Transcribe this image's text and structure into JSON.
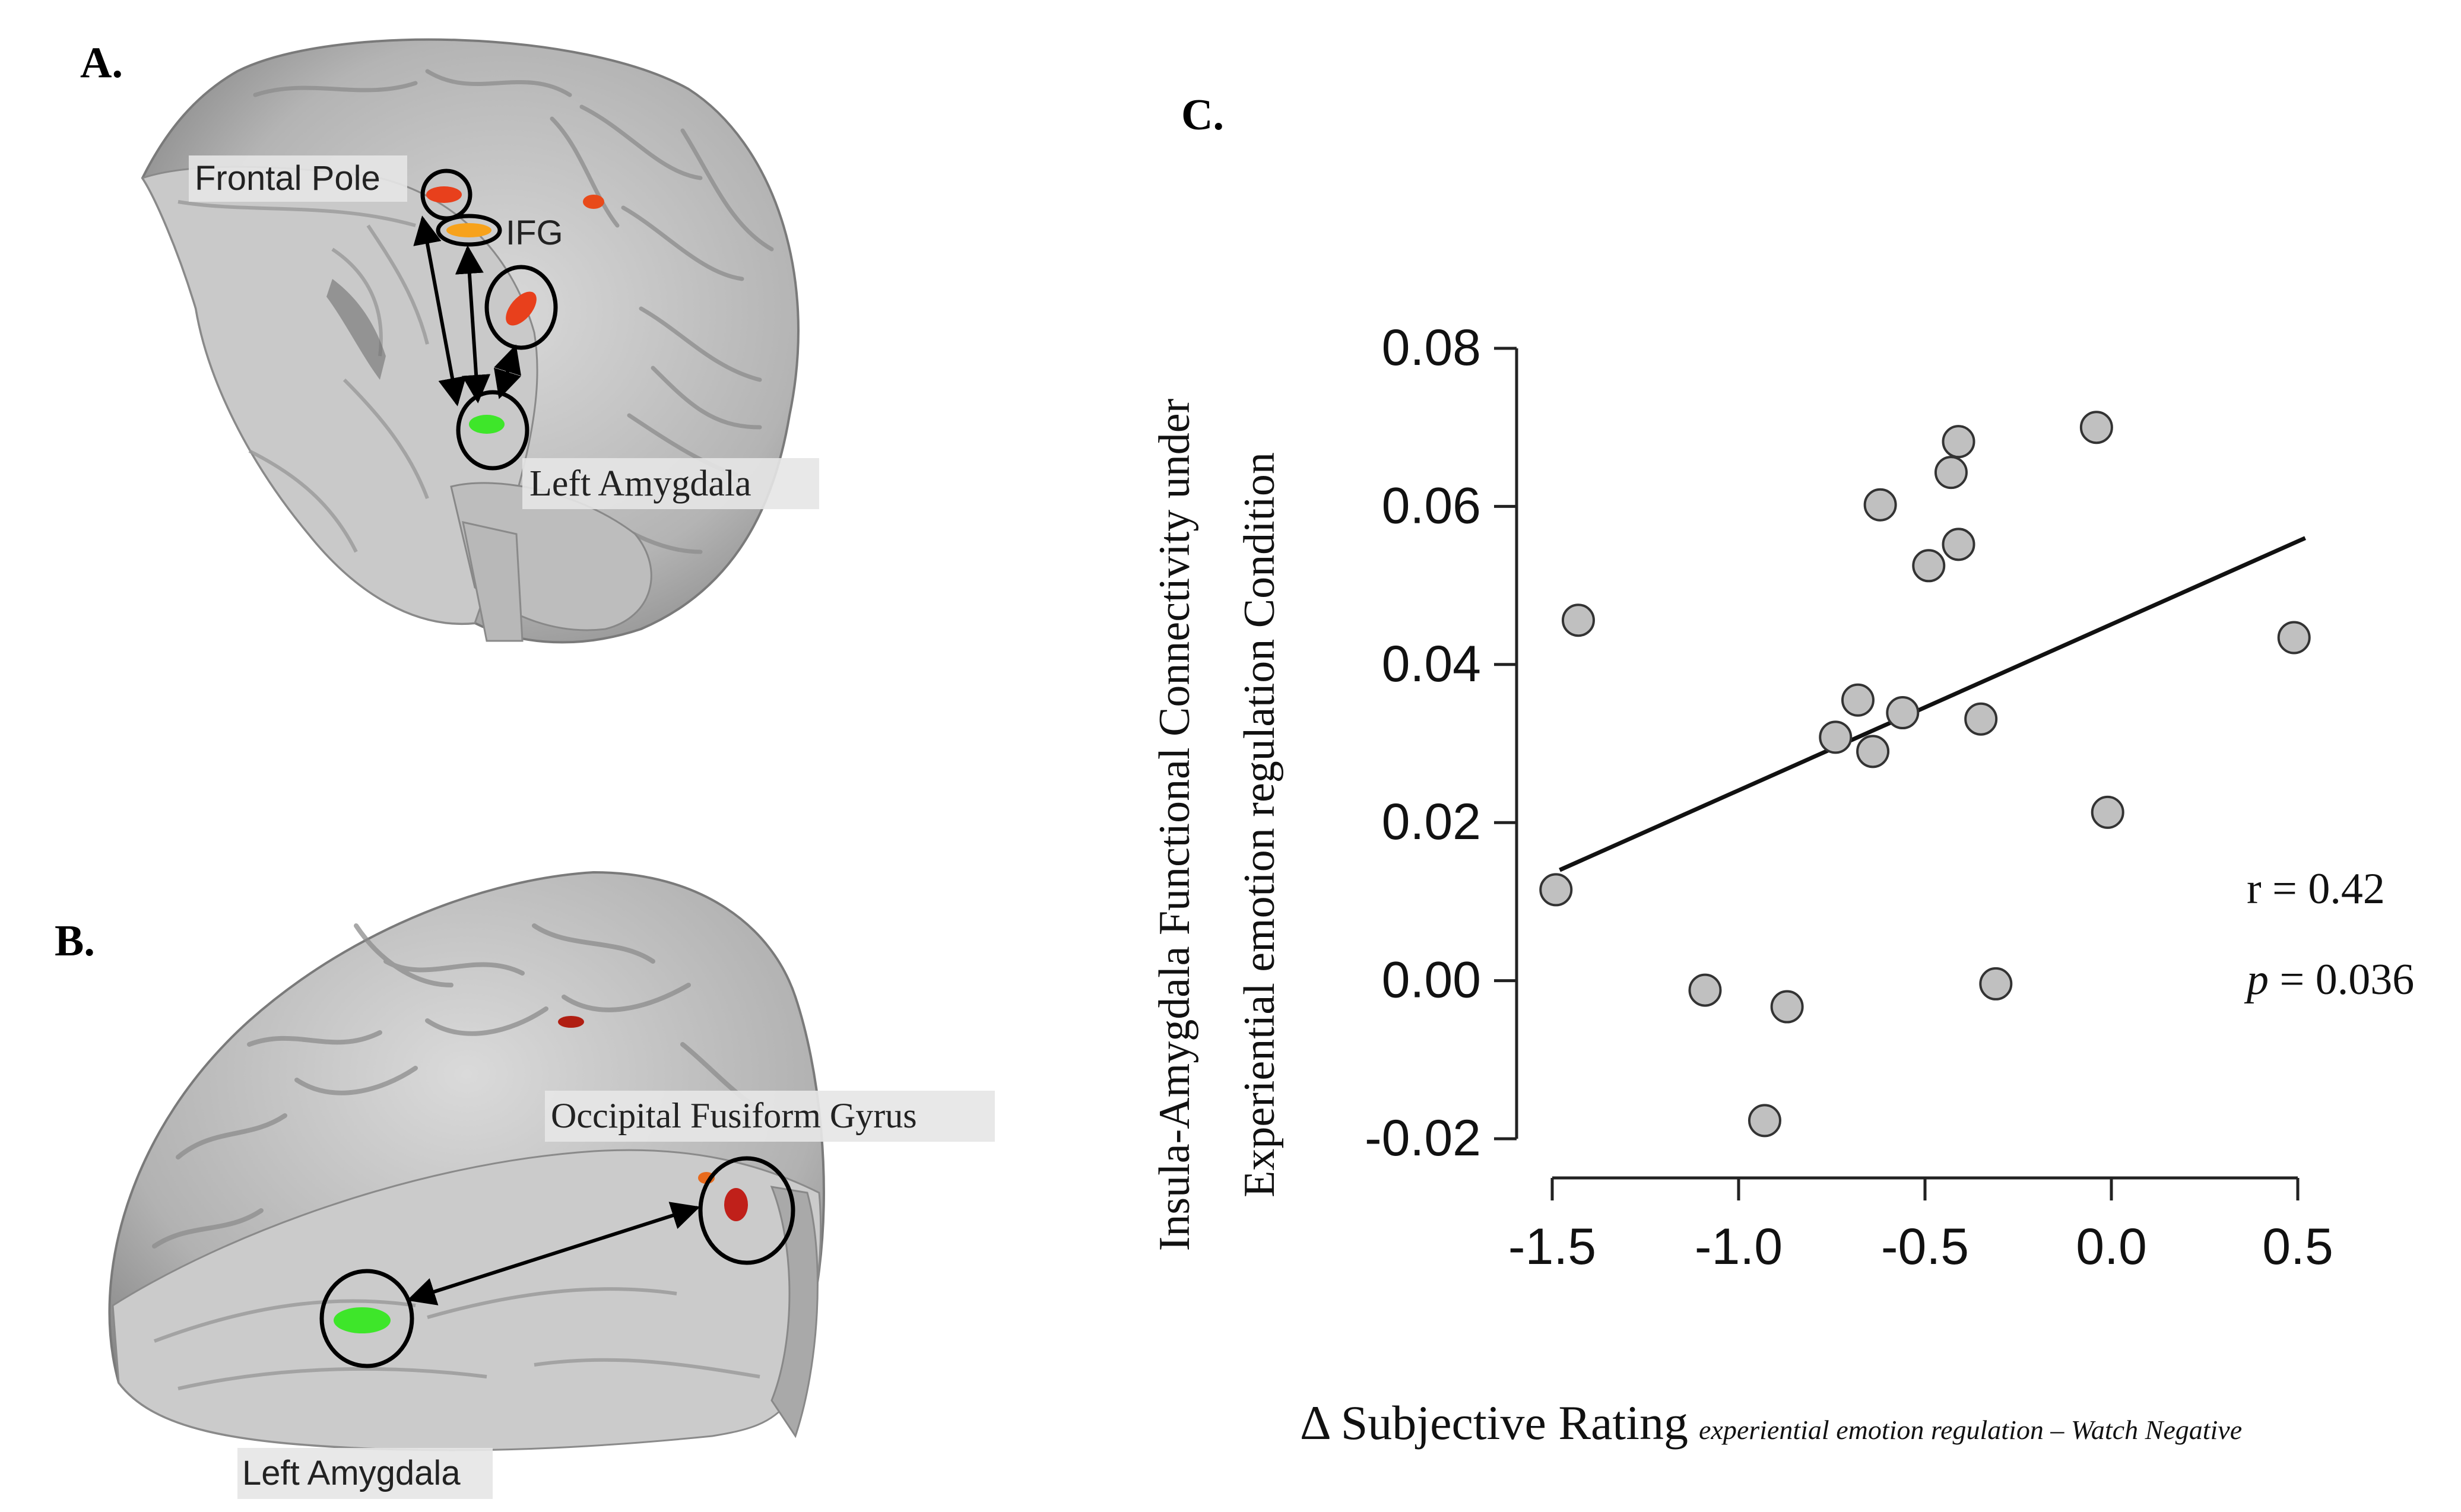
{
  "panels": {
    "a": {
      "label": "A.",
      "regions": {
        "frontal_pole": "Frontal Pole",
        "ifg": "IFG",
        "left_amygdala": "Left Amygdala"
      }
    },
    "b": {
      "label": "B.",
      "regions": {
        "occipital_fusiform": "Occipital Fusiform Gyrus",
        "left_amygdala": "Left Amygdala"
      }
    },
    "c": {
      "label": "C.",
      "ylabel_line1": "Insula-Amygdala Functional Connectivity under",
      "ylabel_line2": "Experiential emotion regulation Condition",
      "xlabel_main": "Δ Subjective Rating",
      "xlabel_sub": "experiential emotion regulation – Watch Negative",
      "stat_r": "r = 0.42",
      "stat_p_symbol": "p",
      "stat_p_value": " = 0.036"
    }
  },
  "colors": {
    "activation_red": "#e8401c",
    "activation_orange": "#f7a21b",
    "amygdala_green": "#3ee62a",
    "point_fill": "#c0c0c0"
  },
  "chart_data": {
    "type": "scatter",
    "title": "",
    "xlabel": "Δ Subjective Rating experiential emotion regulation – Watch Negative",
    "ylabel": "Insula-Amygdala Functional Connectivity under Experiential emotion regulation Condition",
    "xlim": [
      -1.5,
      0.5
    ],
    "ylim": [
      -0.02,
      0.08
    ],
    "xticks": [
      -1.5,
      -1.0,
      -0.5,
      0.0,
      0.5
    ],
    "xtick_labels": [
      "-1.5",
      "-1.0",
      "-0.5",
      "0.0",
      "0.5"
    ],
    "yticks": [
      -0.02,
      0.0,
      0.02,
      0.04,
      0.06,
      0.08
    ],
    "ytick_labels": [
      "-0.02",
      "0.00",
      "0.02",
      "0.04",
      "0.06",
      "0.08"
    ],
    "points": [
      {
        "x": -1.49,
        "y": 0.0115
      },
      {
        "x": -1.43,
        "y": 0.0456
      },
      {
        "x": -1.09,
        "y": -0.0012
      },
      {
        "x": -0.93,
        "y": -0.0177
      },
      {
        "x": -0.87,
        "y": -0.0033
      },
      {
        "x": -0.74,
        "y": 0.0308
      },
      {
        "x": -0.68,
        "y": 0.0355
      },
      {
        "x": -0.64,
        "y": 0.029
      },
      {
        "x": -0.62,
        "y": 0.0602
      },
      {
        "x": -0.56,
        "y": 0.0339
      },
      {
        "x": -0.49,
        "y": 0.0525
      },
      {
        "x": -0.43,
        "y": 0.0643
      },
      {
        "x": -0.41,
        "y": 0.0682
      },
      {
        "x": -0.41,
        "y": 0.0552
      },
      {
        "x": -0.35,
        "y": 0.0331
      },
      {
        "x": -0.31,
        "y": -0.0004
      },
      {
        "x": -0.04,
        "y": 0.07
      },
      {
        "x": -0.01,
        "y": 0.0213
      },
      {
        "x": 0.49,
        "y": 0.0434
      }
    ],
    "fit_line": {
      "x": [
        -1.48,
        0.52
      ],
      "y": [
        0.014,
        0.056
      ]
    },
    "r": 0.42,
    "p": 0.036
  }
}
